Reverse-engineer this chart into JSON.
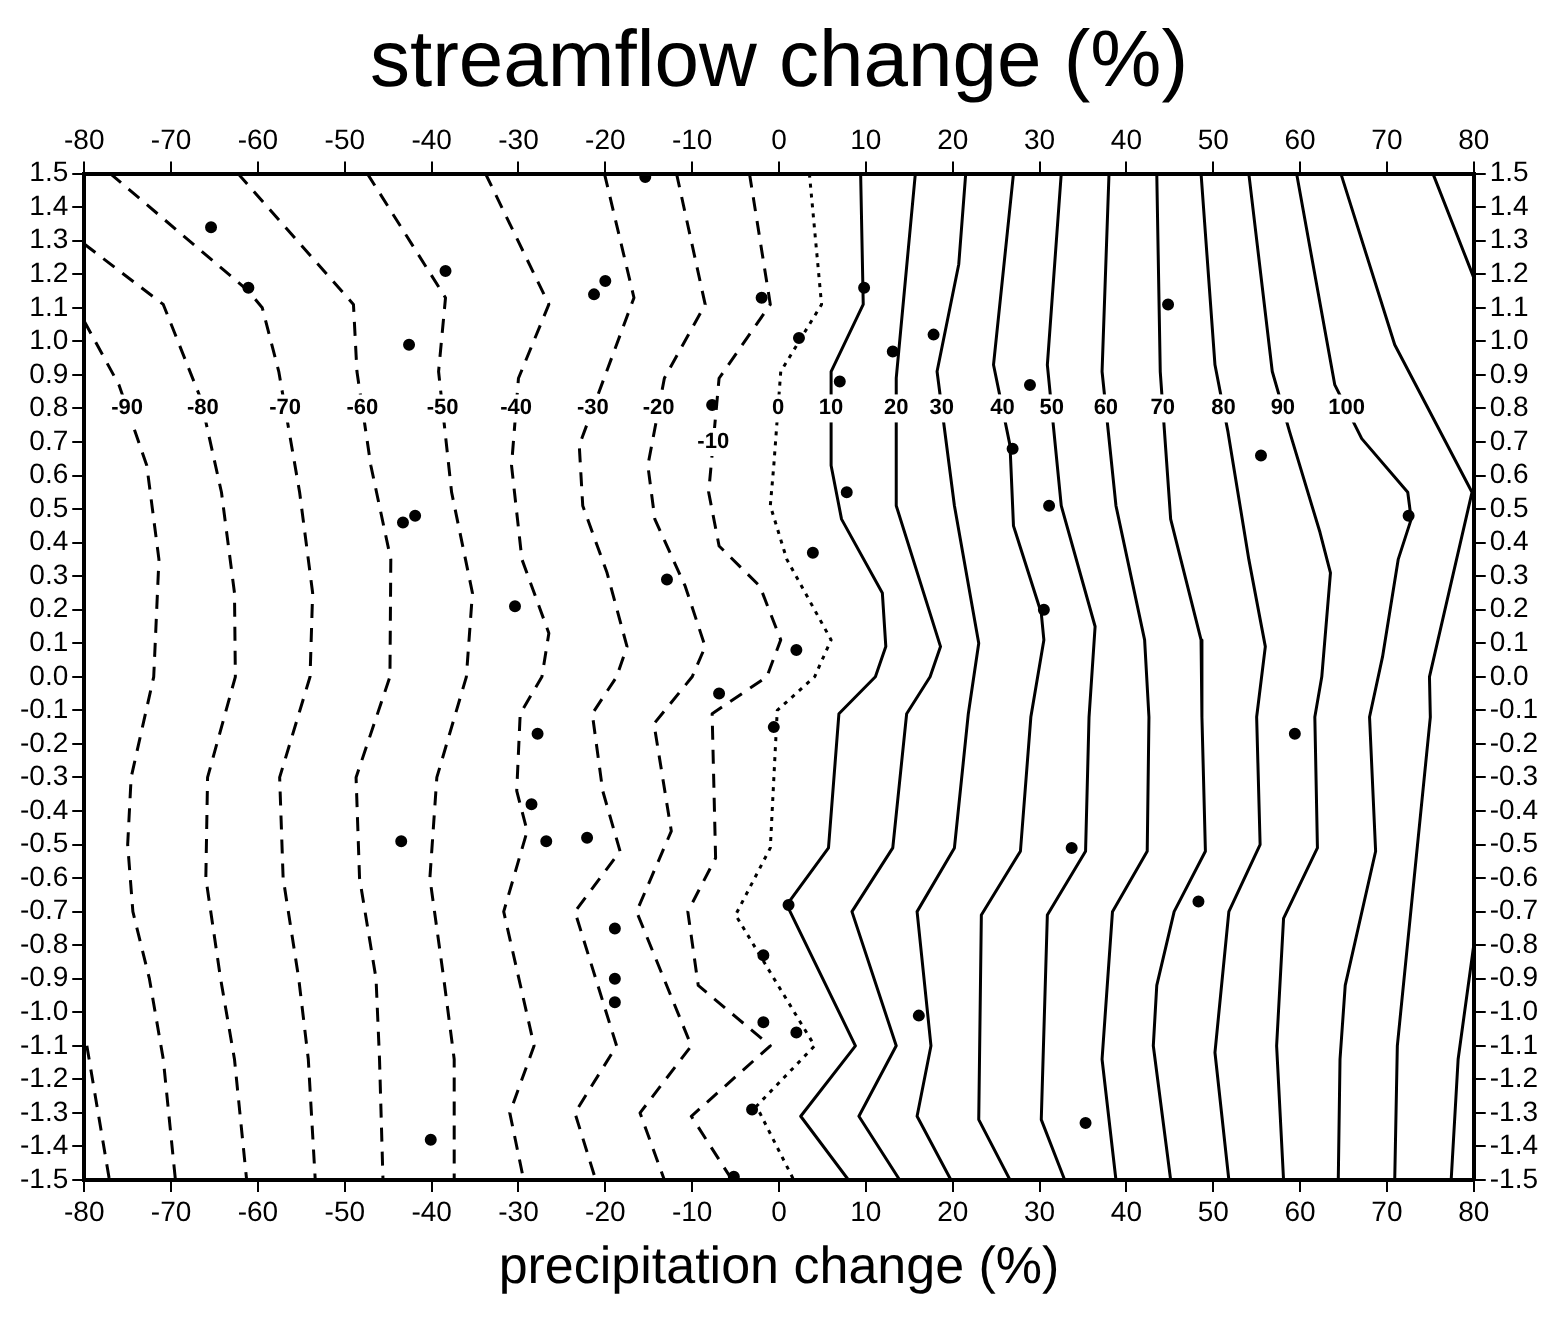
{
  "chart_data": {
    "type": "line",
    "title": "streamflow change (%)",
    "xlabel": "precipitation change (%)",
    "xlim": [
      -80,
      80
    ],
    "xticks": [
      -80,
      -70,
      -60,
      -50,
      -40,
      -30,
      -20,
      -10,
      0,
      10,
      20,
      30,
      40,
      50,
      60,
      70,
      80
    ],
    "x2lim": [
      -80,
      80
    ],
    "x2ticks": [
      -80,
      -70,
      -60,
      -50,
      -40,
      -30,
      -20,
      -10,
      0,
      10,
      20,
      30,
      40,
      50,
      60,
      70,
      80
    ],
    "ylim": [
      -1.5,
      1.5
    ],
    "yticks": [
      1.5,
      1.4,
      1.3,
      1.2,
      1.1,
      {
        "value": 1,
        "label": "1.0"
      },
      0.9,
      0.8,
      0.7,
      0.6,
      0.5,
      0.4,
      0.3,
      0.2,
      0.1,
      {
        "value": 0,
        "label": "0.0"
      },
      -0.1,
      -0.2,
      -0.3,
      -0.4,
      -0.5,
      -0.6,
      -0.7,
      -0.8,
      -0.9,
      {
        "value": -1,
        "label": "-1.0"
      },
      -1.1,
      -1.2,
      -1.3,
      -1.4,
      -1.5
    ],
    "y2lim": [
      -1.5,
      1.5
    ],
    "y2ticks": [
      1.5,
      1.4,
      1.3,
      1.2,
      1.1,
      {
        "value": 1,
        "label": "1.0"
      },
      0.9,
      0.8,
      0.7,
      0.6,
      0.5,
      0.4,
      0.3,
      0.2,
      0.1,
      {
        "value": 0,
        "label": "0.0"
      },
      -0.1,
      -0.2,
      -0.3,
      -0.4,
      -0.5,
      -0.6,
      -0.7,
      -0.8,
      -0.9,
      {
        "value": -1,
        "label": "-1.0"
      },
      -1.1,
      -1.2,
      -1.3,
      -1.4,
      -1.5
    ],
    "grid": false,
    "legend": false,
    "series": [
      {
        "type": "line",
        "color": "#000000",
        "line_style": "dashed",
        "x": [
          -79.7,
          -77.1
        ],
        "values": [
          -1.1,
          -1.5
        ]
      },
      {
        "type": "line",
        "name": "-90",
        "color": "#000000",
        "line_style": "dashed",
        "x": [
          -80,
          -76,
          -72.8,
          -71.4,
          -72,
          -74.6,
          -75,
          -74.4,
          -72.5,
          -70.9,
          -69.5
        ],
        "values": [
          1.06,
          0.87,
          0.63,
          0.35,
          0,
          -0.3,
          -0.5,
          -0.7,
          -0.9,
          -1.14,
          -1.5
        ]
      },
      {
        "type": "line",
        "name": "-80",
        "color": "#000000",
        "line_style": "dashed",
        "x": [
          -80,
          -70.9,
          -66.6,
          -64.2,
          -62.7,
          -62.6,
          -65.8,
          -66,
          -64.3,
          -62.7,
          -61.3
        ],
        "values": [
          1.29,
          1.11,
          0.83,
          0.55,
          0.25,
          0,
          -0.3,
          -0.6,
          -0.9,
          -1.14,
          -1.5
        ]
      },
      {
        "type": "line",
        "name": "-70",
        "color": "#000000",
        "line_style": "dashed",
        "x": [
          -77,
          -61.1,
          -59.5,
          -57.6,
          -55.2,
          -53.7,
          -54,
          -57.5,
          -57.1,
          -55.3,
          -54.2,
          -53.4
        ],
        "values": [
          1.5,
          1.15,
          1.1,
          0.91,
          0.55,
          0.25,
          0,
          -0.3,
          -0.6,
          -0.9,
          -1.14,
          -1.5
        ]
      },
      {
        "type": "line",
        "name": "-60",
        "color": "#000000",
        "line_style": "dashed",
        "x": [
          -62.3,
          -49,
          -48.6,
          -47,
          -44.7,
          -44.8,
          -48.7,
          -48.3,
          -46.4,
          -46,
          -45.6
        ],
        "values": [
          1.5,
          1.11,
          0.91,
          0.63,
          0.35,
          0,
          -0.3,
          -0.6,
          -0.9,
          -1.14,
          -1.5
        ]
      },
      {
        "type": "line",
        "name": "-50",
        "color": "#000000",
        "line_style": "dashed",
        "x": [
          -47.4,
          -38.4,
          -39.2,
          -37.7,
          -35.3,
          -36,
          -39.4,
          -40.2,
          -38.6,
          -37.4,
          -37.4
        ],
        "values": [
          1.5,
          1.13,
          0.91,
          0.55,
          0.25,
          0,
          -0.3,
          -0.6,
          -0.9,
          -1.14,
          -1.5
        ]
      },
      {
        "type": "line",
        "name": "-40",
        "color": "#000000",
        "line_style": "dashed",
        "x": [
          -33.8,
          -26.5,
          -30,
          -30.8,
          -29.6,
          -26.5,
          -27.3,
          -29.8,
          -30.2,
          -29,
          -31.7,
          -28.2,
          -31,
          -29.4
        ],
        "values": [
          1.5,
          1.11,
          0.89,
          0.63,
          0.35,
          0.13,
          0,
          -0.11,
          -0.34,
          -0.46,
          -0.7,
          -1.1,
          -1.3,
          -1.5
        ]
      },
      {
        "type": "line",
        "name": "-30",
        "color": "#000000",
        "line_style": "dashed",
        "x": [
          -20.1,
          -16.7,
          -21,
          -23,
          -22.6,
          -19.8,
          -17.5,
          -18.7,
          -21.5,
          -20.3,
          -18.3,
          -23.5,
          -18.7,
          -23.5,
          -21.1
        ],
        "values": [
          1.5,
          1.13,
          0.83,
          0.69,
          0.51,
          0.31,
          0.09,
          0,
          -0.11,
          -0.34,
          -0.52,
          -0.7,
          -1.1,
          -1.3,
          -1.5
        ]
      },
      {
        "type": "line",
        "name": "-20",
        "color": "#000000",
        "line_style": "dashed",
        "x": [
          -11.8,
          -8.5,
          -13.2,
          -15.1,
          -14.3,
          -10.8,
          -8.5,
          -10,
          -14.4,
          -12.4,
          -16.4,
          -10.1,
          -16,
          -13.2
        ],
        "values": [
          1.5,
          1.11,
          0.89,
          0.63,
          0.47,
          0.27,
          0.09,
          0,
          -0.14,
          -0.46,
          -0.7,
          -1.1,
          -1.3,
          -1.5
        ]
      },
      {
        "type": "line",
        "name": "-10",
        "color": "#000000",
        "line_style": "dashed",
        "x": [
          -3.4,
          -1,
          -6.9,
          -8.1,
          -6.9,
          -2.2,
          0.2,
          -1.4,
          -7.7,
          -7.3,
          -10.5,
          -9.3,
          -1,
          -10.1,
          -5.4
        ],
        "values": [
          1.5,
          1.11,
          0.89,
          0.55,
          0.39,
          0.27,
          0.11,
          0,
          -0.11,
          -0.54,
          -0.7,
          -0.92,
          -1.1,
          -1.31,
          -1.5
        ]
      },
      {
        "type": "line",
        "name": "0",
        "color": "#000000",
        "line_style": "dotted",
        "x": [
          3.5,
          4.9,
          0.2,
          -0.6,
          -1,
          0.9,
          6,
          4.1,
          -0.2,
          -1,
          -5,
          4.1,
          -2.6,
          1.7
        ],
        "values": [
          1.5,
          1.11,
          0.91,
          0.63,
          0.51,
          0.35,
          0.11,
          0,
          -0.1,
          -0.51,
          -0.71,
          -1.1,
          -1.28,
          -1.5
        ]
      },
      {
        "type": "line",
        "name": "10",
        "color": "#000000",
        "line_style": "solid",
        "x": [
          9.4,
          9.7,
          6,
          6,
          7.2,
          11.9,
          12.3,
          11.1,
          6.9,
          5.7,
          0.9,
          8.8,
          2.5,
          8
        ],
        "values": [
          1.5,
          1.11,
          0.91,
          0.63,
          0.47,
          0.25,
          0.09,
          0,
          -0.11,
          -0.51,
          -0.68,
          -1.1,
          -1.31,
          -1.5
        ]
      },
      {
        "type": "line",
        "name": "20",
        "color": "#000000",
        "line_style": "solid",
        "x": [
          15.7,
          13.5,
          13.5,
          18.6,
          17.4,
          14.7,
          13.1,
          8.4,
          13.5,
          9.2,
          13.9
        ],
        "values": [
          1.5,
          0.89,
          0.51,
          0.09,
          0,
          -0.11,
          -0.51,
          -0.7,
          -1.1,
          -1.31,
          -1.5
        ]
      },
      {
        "type": "line",
        "name": "30",
        "color": "#000000",
        "line_style": "solid",
        "x": [
          21.5,
          20.7,
          18.2,
          20.2,
          23,
          21.8,
          20.2,
          15.9,
          17.5,
          15.9,
          19.8
        ],
        "values": [
          1.5,
          1.23,
          0.91,
          0.51,
          0.1,
          -0.11,
          -0.51,
          -0.7,
          -1.1,
          -1.31,
          -1.5
        ]
      },
      {
        "type": "line",
        "name": "40",
        "color": "#000000",
        "line_style": "solid",
        "x": [
          27,
          24.7,
          26.6,
          27,
          30.2,
          30.5,
          29,
          27.8,
          23.3,
          23,
          26.6
        ],
        "values": [
          1.5,
          0.93,
          0.69,
          0.45,
          0.19,
          0.11,
          -0.12,
          -0.52,
          -0.71,
          -1.32,
          -1.5
        ]
      },
      {
        "type": "line",
        "name": "50",
        "color": "#000000",
        "line_style": "solid",
        "x": [
          32.5,
          30.9,
          32.5,
          36.4,
          35.7,
          35.3,
          30.9,
          30.2,
          32.9
        ],
        "values": [
          1.5,
          0.93,
          0.51,
          0.15,
          -0.12,
          -0.52,
          -0.71,
          -1.32,
          -1.5
        ]
      },
      {
        "type": "line",
        "name": "60",
        "color": "#000000",
        "line_style": "solid",
        "x": [
          38,
          37.2,
          38.8,
          42.1,
          42.6,
          42.4,
          38.4,
          37.2,
          38.8
        ],
        "values": [
          1.5,
          0.91,
          0.51,
          0.11,
          -0.12,
          -0.52,
          -0.7,
          -1.14,
          -1.5
        ]
      },
      {
        "type": "line",
        "name": "70",
        "color": "#000000",
        "line_style": "solid",
        "x": [
          43.5,
          43.9,
          45.1,
          48.6,
          48.7,
          49.1,
          45.5,
          43.5,
          43.1,
          45.1
        ],
        "values": [
          1.5,
          0.91,
          0.47,
          0.11,
          -0.12,
          -0.52,
          -0.7,
          -0.92,
          -1.1,
          -1.5
        ]
      },
      {
        "type": "line",
        "name": "80",
        "color": "#000000",
        "line_style": "solid",
        "x": [
          48.6,
          50.2,
          51.7,
          54.1,
          56,
          55,
          55.4,
          51.8,
          50.2,
          51.8
        ],
        "values": [
          1.5,
          0.93,
          0.73,
          0.35,
          0.09,
          -0.12,
          -0.5,
          -0.7,
          -1.12,
          -1.5
        ]
      },
      {
        "type": "line",
        "name": "90",
        "color": "#000000",
        "line_style": "solid",
        "x": [
          54.1,
          56.8,
          58.8,
          62.3,
          63.5,
          62.5,
          61.7,
          62,
          58.1,
          57.3,
          58.1
        ],
        "values": [
          1.5,
          0.91,
          0.73,
          0.43,
          0.31,
          0,
          -0.12,
          -0.51,
          -0.72,
          -1.1,
          -1.5
        ]
      },
      {
        "type": "line",
        "name": "100",
        "color": "#000000",
        "line_style": "solid",
        "x": [
          59.6,
          64,
          67.1,
          72.4,
          72.8,
          71.3,
          69.5,
          68,
          68.7,
          65.2,
          64.6,
          64.4
        ],
        "values": [
          1.5,
          0.87,
          0.71,
          0.55,
          0.47,
          0.35,
          0.06,
          -0.12,
          -0.52,
          -0.92,
          -1.14,
          -1.5
        ]
      },
      {
        "type": "line",
        "color": "#000000",
        "line_style": "solid",
        "x": [
          64.7,
          70.9,
          79.8,
          74.9,
          75,
          71.2,
          70.9
        ],
        "values": [
          1.5,
          0.99,
          0.55,
          0,
          -0.12,
          -1.1,
          -1.5
        ]
      },
      {
        "type": "line",
        "color": "#000000",
        "line_style": "solid",
        "x": [
          75.3,
          80,
          null,
          80,
          78.2,
          77.4
        ],
        "values": [
          1.5,
          1.19,
          null,
          -0.8,
          -1.14,
          -1.5
        ]
      },
      {
        "type": "scatter",
        "color": "#000000",
        "marker": "circle",
        "x": [
          -65.4,
          -61.1,
          -38.4,
          -42.6,
          -43.3,
          -41.9,
          -30.4,
          -20,
          -21.3,
          -15.4,
          -2,
          2.3,
          9.8,
          7,
          13.1,
          17.8,
          7.8,
          -7.7,
          3.9,
          -12.9,
          2,
          44.8,
          28.9,
          26.9,
          31.1,
          30.5,
          55.5,
          72.5,
          -43.5,
          -40.1,
          -27.8,
          -28.5,
          -26.8,
          -22.1,
          -6.9,
          -0.6,
          -18.9,
          -18.9,
          -18.9,
          1.1,
          -1.8,
          -1.8,
          2,
          -3.1,
          -5.2,
          16.1,
          33.7,
          48.3,
          59.4,
          35.3
        ],
        "values": [
          1.34,
          1.16,
          1.21,
          0.99,
          0.46,
          0.48,
          0.21,
          1.18,
          1.14,
          1.49,
          1.13,
          1.01,
          1.16,
          0.88,
          0.97,
          1.02,
          0.55,
          0.81,
          0.37,
          0.29,
          0.08,
          1.11,
          0.87,
          0.68,
          0.51,
          0.2,
          0.66,
          0.48,
          -0.49,
          -1.38,
          -0.17,
          -0.38,
          -0.49,
          -0.48,
          -0.05,
          -0.15,
          -0.75,
          -0.9,
          -0.97,
          -0.68,
          -0.83,
          -1.03,
          -1.06,
          -1.29,
          -1.49,
          -1.01,
          -0.51,
          -0.67,
          -0.17,
          -1.33
        ]
      }
    ]
  }
}
